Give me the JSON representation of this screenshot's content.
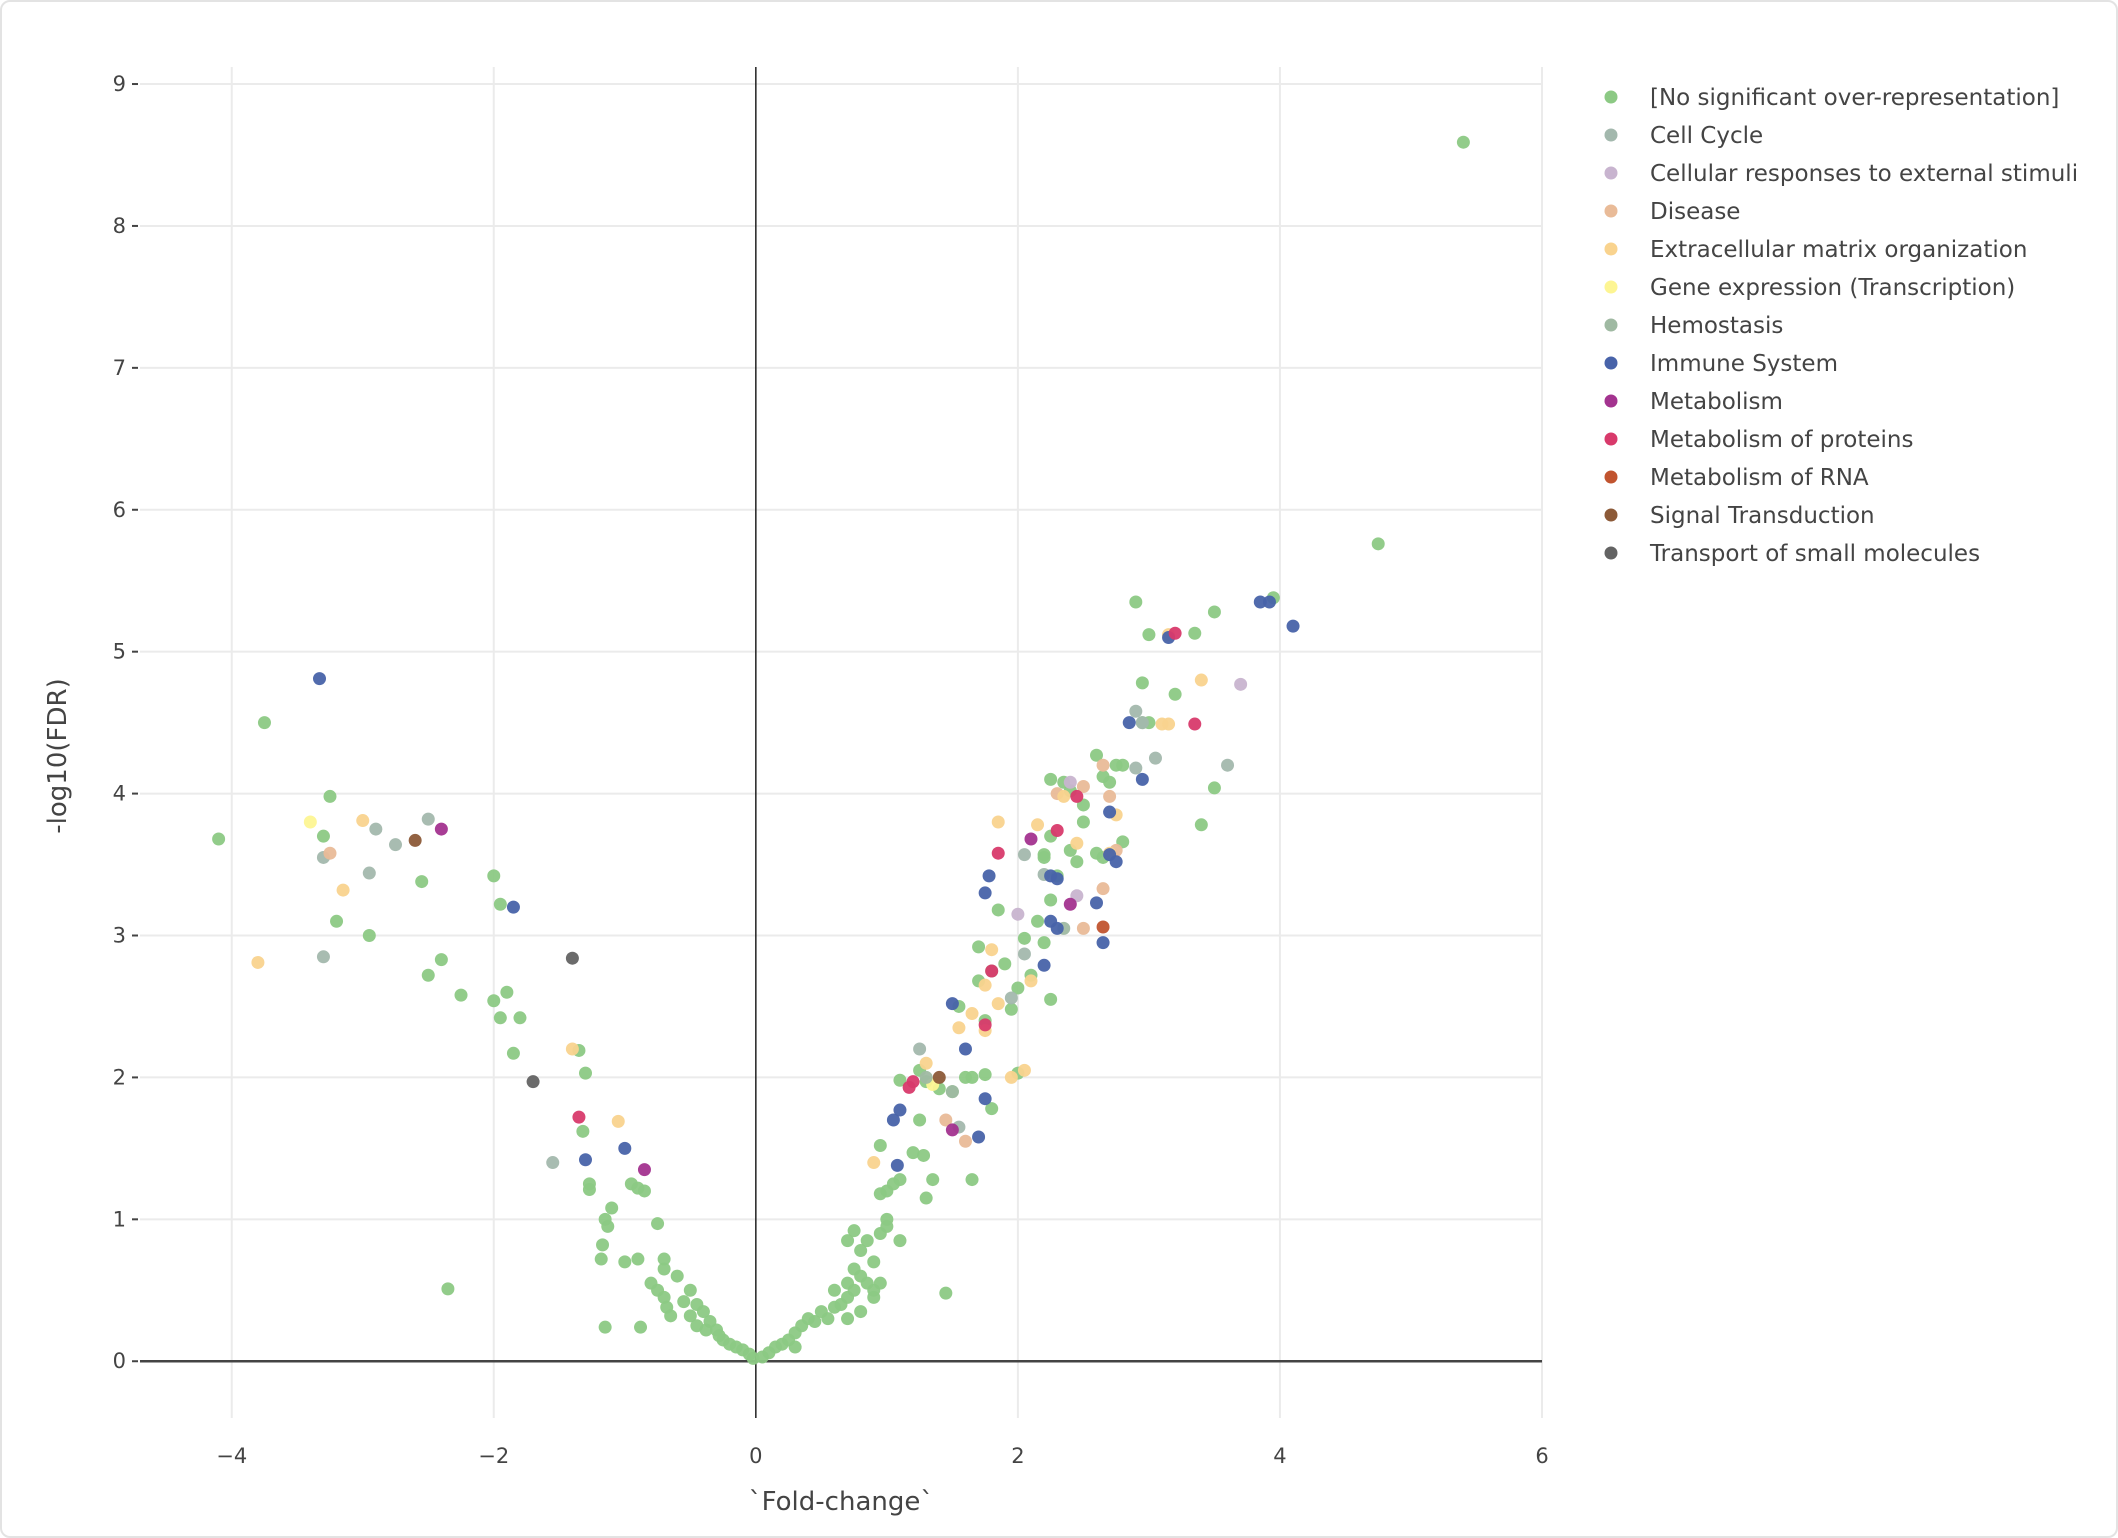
{
  "chart_data": {
    "type": "scatter",
    "xlabel": "`Fold-change`",
    "ylabel": "-log10(FDR)",
    "xlim": [
      -4.7,
      6
    ],
    "ylim": [
      -0.4,
      9.12
    ],
    "xticks": [
      -4,
      -2,
      0,
      2,
      4,
      6
    ],
    "xtick_labels": [
      "−4",
      "−2",
      "0",
      "2",
      "4",
      "6"
    ],
    "yticks": [
      0,
      1,
      2,
      3,
      4,
      5,
      6,
      7,
      8,
      9
    ],
    "ytick_labels": [
      "0",
      "1",
      "2",
      "3",
      "4",
      "5",
      "6",
      "7",
      "8",
      "9"
    ],
    "grid": true,
    "zero_lines": true,
    "legend_position": "right",
    "series": [
      {
        "name": "[No significant over-representation]",
        "color": "#8cc984",
        "points": [
          [
            -4.1,
            3.68
          ],
          [
            -3.75,
            4.5
          ],
          [
            -3.25,
            3.98
          ],
          [
            -3.3,
            3.7
          ],
          [
            -3.2,
            3.1
          ],
          [
            -2.95,
            3.0
          ],
          [
            -2.55,
            3.38
          ],
          [
            -2.5,
            2.72
          ],
          [
            -2.4,
            2.83
          ],
          [
            -2.25,
            2.58
          ],
          [
            -2.0,
            3.42
          ],
          [
            -1.95,
            3.22
          ],
          [
            -2.0,
            2.54
          ],
          [
            -1.9,
            2.6
          ],
          [
            -1.95,
            2.42
          ],
          [
            -1.8,
            2.42
          ],
          [
            -1.85,
            2.17
          ],
          [
            -1.35,
            2.19
          ],
          [
            -1.3,
            2.03
          ],
          [
            -1.32,
            1.62
          ],
          [
            -1.27,
            1.25
          ],
          [
            -1.27,
            1.21
          ],
          [
            -1.1,
            1.08
          ],
          [
            -1.15,
            1.0
          ],
          [
            -1.13,
            0.95
          ],
          [
            -1.17,
            0.82
          ],
          [
            -1.18,
            0.72
          ],
          [
            -0.95,
            1.25
          ],
          [
            -0.9,
            1.22
          ],
          [
            -0.85,
            1.2
          ],
          [
            -0.75,
            0.97
          ],
          [
            -1.0,
            0.7
          ],
          [
            -0.9,
            0.72
          ],
          [
            -0.7,
            0.72
          ],
          [
            -0.7,
            0.65
          ],
          [
            -0.6,
            0.6
          ],
          [
            -0.8,
            0.55
          ],
          [
            -0.75,
            0.5
          ],
          [
            -0.7,
            0.45
          ],
          [
            -0.68,
            0.38
          ],
          [
            -0.65,
            0.32
          ],
          [
            -0.5,
            0.5
          ],
          [
            -0.55,
            0.42
          ],
          [
            -0.45,
            0.4
          ],
          [
            -0.5,
            0.32
          ],
          [
            -0.4,
            0.35
          ],
          [
            -0.45,
            0.25
          ],
          [
            -0.35,
            0.28
          ],
          [
            -0.38,
            0.22
          ],
          [
            -0.3,
            0.22
          ],
          [
            -0.28,
            0.18
          ],
          [
            -0.25,
            0.15
          ],
          [
            -0.2,
            0.12
          ],
          [
            -0.15,
            0.1
          ],
          [
            -0.1,
            0.08
          ],
          [
            -0.05,
            0.05
          ],
          [
            -0.02,
            0.02
          ],
          [
            -1.15,
            0.24
          ],
          [
            -0.88,
            0.24
          ],
          [
            -2.35,
            0.51
          ],
          [
            0.05,
            0.03
          ],
          [
            0.1,
            0.06
          ],
          [
            0.15,
            0.1
          ],
          [
            0.2,
            0.12
          ],
          [
            0.25,
            0.15
          ],
          [
            0.3,
            0.2
          ],
          [
            0.35,
            0.25
          ],
          [
            0.3,
            0.1
          ],
          [
            0.4,
            0.3
          ],
          [
            0.45,
            0.28
          ],
          [
            0.5,
            0.35
          ],
          [
            0.55,
            0.3
          ],
          [
            0.6,
            0.38
          ],
          [
            0.65,
            0.4
          ],
          [
            0.7,
            0.45
          ],
          [
            0.75,
            0.5
          ],
          [
            0.6,
            0.5
          ],
          [
            0.7,
            0.55
          ],
          [
            0.8,
            0.6
          ],
          [
            0.75,
            0.65
          ],
          [
            0.85,
            0.55
          ],
          [
            0.9,
            0.5
          ],
          [
            0.95,
            0.55
          ],
          [
            0.7,
            0.3
          ],
          [
            0.8,
            0.35
          ],
          [
            0.9,
            0.45
          ],
          [
            0.7,
            0.85
          ],
          [
            0.75,
            0.92
          ],
          [
            0.85,
            0.85
          ],
          [
            0.8,
            0.78
          ],
          [
            0.9,
            0.7
          ],
          [
            0.95,
            0.9
          ],
          [
            1.0,
            0.95
          ],
          [
            1.0,
            1.0
          ],
          [
            1.1,
            0.85
          ],
          [
            0.95,
            1.18
          ],
          [
            1.0,
            1.2
          ],
          [
            1.05,
            1.25
          ],
          [
            1.1,
            1.28
          ],
          [
            1.3,
            1.15
          ],
          [
            1.35,
            1.28
          ],
          [
            1.2,
            1.47
          ],
          [
            1.28,
            1.45
          ],
          [
            1.25,
            1.7
          ],
          [
            1.45,
            0.48
          ],
          [
            1.65,
            1.28
          ],
          [
            0.95,
            1.52
          ],
          [
            1.1,
            1.98
          ],
          [
            1.25,
            2.05
          ],
          [
            1.3,
            1.97
          ],
          [
            1.4,
            1.92
          ],
          [
            1.5,
            1.9
          ],
          [
            1.6,
            2.0
          ],
          [
            1.65,
            2.0
          ],
          [
            1.75,
            2.02
          ],
          [
            1.8,
            1.78
          ],
          [
            1.55,
            2.5
          ],
          [
            1.7,
            2.68
          ],
          [
            1.75,
            2.4
          ],
          [
            1.7,
            2.92
          ],
          [
            1.8,
            2.75
          ],
          [
            1.9,
            2.8
          ],
          [
            1.95,
            2.48
          ],
          [
            2.0,
            2.63
          ],
          [
            2.05,
            2.98
          ],
          [
            2.1,
            2.72
          ],
          [
            2.2,
            2.95
          ],
          [
            2.25,
            2.55
          ],
          [
            1.85,
            3.18
          ],
          [
            2.15,
            3.1
          ],
          [
            2.25,
            3.25
          ],
          [
            2.3,
            3.42
          ],
          [
            2.4,
            3.6
          ],
          [
            2.2,
            3.57
          ],
          [
            2.25,
            3.7
          ],
          [
            2.25,
            4.1
          ],
          [
            2.35,
            4.08
          ],
          [
            2.4,
            4.02
          ],
          [
            2.5,
            3.92
          ],
          [
            2.6,
            3.58
          ],
          [
            2.65,
            4.12
          ],
          [
            2.7,
            4.08
          ],
          [
            2.75,
            4.2
          ],
          [
            2.6,
            4.27
          ],
          [
            2.8,
            4.2
          ],
          [
            2.8,
            3.66
          ],
          [
            2.95,
            4.5
          ],
          [
            3.0,
            4.5
          ],
          [
            3.2,
            4.7
          ],
          [
            2.95,
            4.78
          ],
          [
            2.9,
            5.35
          ],
          [
            3.0,
            5.12
          ],
          [
            3.35,
            5.13
          ],
          [
            3.5,
            5.28
          ],
          [
            3.95,
            5.38
          ],
          [
            3.5,
            4.04
          ],
          [
            3.4,
            3.78
          ],
          [
            2.65,
            3.55
          ],
          [
            2.5,
            3.8
          ],
          [
            4.75,
            5.76
          ],
          [
            5.4,
            8.59
          ],
          [
            2.0,
            2.03
          ],
          [
            2.2,
            3.55
          ],
          [
            2.45,
            3.52
          ]
        ]
      },
      {
        "name": "Cell Cycle",
        "color": "#a3b8ad",
        "points": [
          [
            -3.3,
            3.55
          ],
          [
            -3.3,
            2.85
          ],
          [
            -2.9,
            3.75
          ],
          [
            -2.75,
            3.64
          ],
          [
            -2.95,
            3.44
          ],
          [
            -2.5,
            3.82
          ],
          [
            -1.55,
            1.4
          ],
          [
            1.25,
            2.2
          ],
          [
            1.55,
            1.65
          ],
          [
            2.05,
            3.57
          ],
          [
            2.05,
            2.87
          ],
          [
            2.2,
            3.43
          ],
          [
            2.9,
            4.58
          ],
          [
            2.95,
            4.5
          ],
          [
            3.05,
            4.25
          ],
          [
            3.6,
            4.2
          ],
          [
            2.9,
            4.18
          ],
          [
            1.95,
            2.56
          ]
        ]
      },
      {
        "name": "Cellular responses to external stimuli",
        "color": "#c8b4cf",
        "points": [
          [
            3.7,
            4.77
          ],
          [
            2.4,
            4.08
          ],
          [
            2.0,
            3.15
          ],
          [
            2.45,
            3.28
          ]
        ]
      },
      {
        "name": "Disease",
        "color": "#e9bb98",
        "points": [
          [
            -3.25,
            3.58
          ],
          [
            2.5,
            3.05
          ],
          [
            2.65,
            3.33
          ],
          [
            2.7,
            3.98
          ],
          [
            2.65,
            4.2
          ],
          [
            2.75,
            3.6
          ],
          [
            1.45,
            1.7
          ],
          [
            1.6,
            1.55
          ],
          [
            2.3,
            4.0
          ],
          [
            2.5,
            4.05
          ]
        ]
      },
      {
        "name": "Extracellular matrix organization",
        "color": "#f9d38e",
        "points": [
          [
            -3.0,
            3.81
          ],
          [
            -3.15,
            3.32
          ],
          [
            -3.8,
            2.81
          ],
          [
            -1.4,
            2.2
          ],
          [
            -1.05,
            1.69
          ],
          [
            1.85,
            3.8
          ],
          [
            2.35,
            3.98
          ],
          [
            2.45,
            3.65
          ],
          [
            3.15,
            5.12
          ],
          [
            3.4,
            4.8
          ],
          [
            3.1,
            4.49
          ],
          [
            3.15,
            4.49
          ],
          [
            2.75,
            3.85
          ],
          [
            1.8,
            2.9
          ],
          [
            1.75,
            2.65
          ],
          [
            1.85,
            2.52
          ],
          [
            1.55,
            2.35
          ],
          [
            1.75,
            2.33
          ],
          [
            1.65,
            2.45
          ],
          [
            1.95,
            2.0
          ],
          [
            1.3,
            2.1
          ],
          [
            0.9,
            1.4
          ],
          [
            2.05,
            2.05
          ],
          [
            2.1,
            2.68
          ],
          [
            2.7,
            3.58
          ],
          [
            2.15,
            3.78
          ]
        ]
      },
      {
        "name": "Gene expression (Transcription)",
        "color": "#fdf593",
        "points": [
          [
            -3.4,
            3.8
          ],
          [
            1.35,
            1.95
          ]
        ]
      },
      {
        "name": "Hemostasis",
        "color": "#9fb9a2",
        "points": [
          [
            2.35,
            3.05
          ],
          [
            1.3,
            2.0
          ],
          [
            1.5,
            1.9
          ]
        ]
      },
      {
        "name": "Immune System",
        "color": "#4863a9",
        "points": [
          [
            -3.33,
            4.81
          ],
          [
            -1.85,
            3.2
          ],
          [
            -1.3,
            1.42
          ],
          [
            -1.0,
            1.5
          ],
          [
            1.05,
            1.7
          ],
          [
            1.1,
            1.77
          ],
          [
            1.08,
            1.38
          ],
          [
            1.5,
            2.52
          ],
          [
            1.6,
            2.2
          ],
          [
            1.75,
            1.85
          ],
          [
            1.7,
            1.58
          ],
          [
            1.75,
            3.3
          ],
          [
            1.78,
            3.42
          ],
          [
            2.25,
            3.42
          ],
          [
            2.3,
            3.4
          ],
          [
            2.25,
            3.1
          ],
          [
            2.2,
            2.79
          ],
          [
            2.6,
            3.23
          ],
          [
            2.65,
            2.95
          ],
          [
            2.7,
            3.57
          ],
          [
            2.75,
            3.52
          ],
          [
            2.7,
            3.87
          ],
          [
            2.85,
            4.5
          ],
          [
            2.95,
            4.1
          ],
          [
            3.15,
            5.1
          ],
          [
            3.85,
            5.35
          ],
          [
            3.92,
            5.35
          ],
          [
            4.1,
            5.18
          ],
          [
            2.3,
            3.05
          ]
        ]
      },
      {
        "name": "Metabolism",
        "color": "#a3338f",
        "points": [
          [
            -2.4,
            3.75
          ],
          [
            -0.85,
            1.35
          ],
          [
            1.5,
            1.63
          ],
          [
            2.1,
            3.68
          ],
          [
            2.4,
            3.22
          ]
        ]
      },
      {
        "name": "Metabolism of proteins",
        "color": "#d83a6b",
        "points": [
          [
            -1.35,
            1.72
          ],
          [
            1.2,
            1.97
          ],
          [
            1.75,
            2.37
          ],
          [
            1.8,
            2.75
          ],
          [
            1.85,
            3.58
          ],
          [
            2.3,
            3.74
          ],
          [
            2.45,
            3.98
          ],
          [
            3.2,
            5.13
          ],
          [
            3.35,
            4.49
          ],
          [
            1.17,
            1.93
          ]
        ]
      },
      {
        "name": "Metabolism of RNA",
        "color": "#c1542f",
        "points": [
          [
            2.65,
            3.06
          ]
        ]
      },
      {
        "name": "Signal Transduction",
        "color": "#8c5a38",
        "points": [
          [
            -2.6,
            3.67
          ],
          [
            1.4,
            2.0
          ]
        ]
      },
      {
        "name": "Transport of small molecules",
        "color": "#636363",
        "points": [
          [
            -1.4,
            2.84
          ],
          [
            -1.7,
            1.97
          ]
        ]
      }
    ]
  }
}
